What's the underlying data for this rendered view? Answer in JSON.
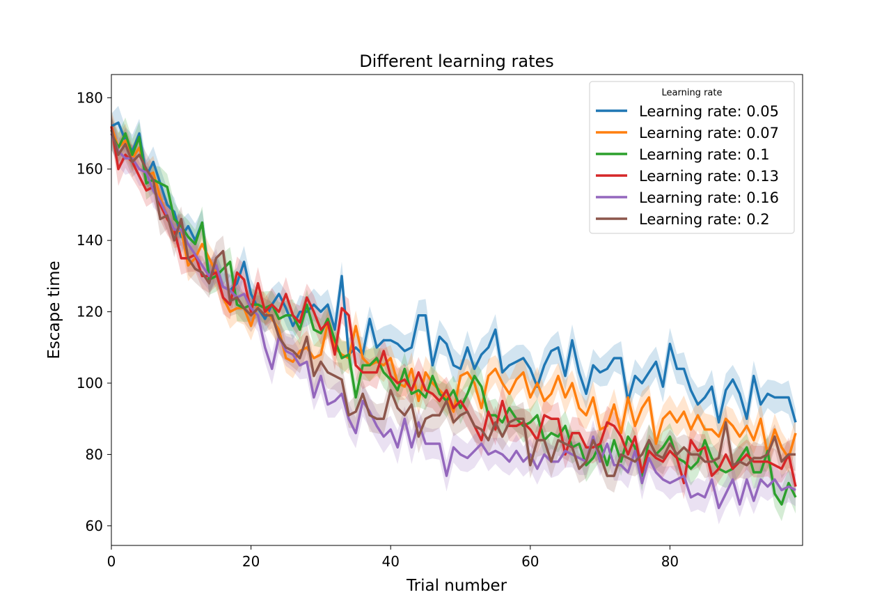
{
  "chart_data": {
    "type": "line",
    "title": "Different learning rates",
    "xlabel": "Trial number",
    "ylabel": "Escape time",
    "xlim": [
      0,
      99
    ],
    "ylim": [
      54.5,
      186.5
    ],
    "xticks": [
      0,
      20,
      40,
      60,
      80
    ],
    "yticks": [
      60,
      80,
      100,
      120,
      140,
      160,
      180
    ],
    "grid": false,
    "legend": {
      "title": "Learning rate",
      "placement": "upper right"
    },
    "band_halfwidth": 3.5,
    "series": [
      {
        "name": "Learning rate: 0.05",
        "color": "#1f77b4",
        "values": [
          172,
          173,
          168,
          165,
          170,
          158,
          162,
          156,
          150,
          148,
          141,
          144,
          140,
          145,
          130,
          132,
          127,
          126,
          128,
          134,
          125,
          121,
          118,
          122,
          125,
          121,
          116,
          120,
          120,
          122,
          120,
          122,
          115,
          130,
          108,
          110,
          108,
          118,
          110,
          112,
          112,
          111,
          109,
          110,
          119,
          119,
          105,
          113,
          111,
          105,
          104,
          110,
          104,
          108,
          110,
          115,
          103,
          105,
          106,
          107,
          104,
          99,
          105,
          109,
          110,
          102,
          112,
          103,
          97,
          105,
          103,
          104,
          107,
          107,
          95,
          102,
          100,
          103,
          106,
          99,
          111,
          104,
          104,
          98,
          94,
          96,
          99,
          89,
          98,
          101,
          97,
          90,
          102,
          94,
          97,
          96,
          96,
          96,
          89
        ]
      },
      {
        "name": "Learning rate: 0.07",
        "color": "#ff7f0e",
        "values": [
          172,
          166,
          168,
          163,
          166,
          158,
          159,
          152,
          147,
          142,
          143,
          133,
          135,
          139,
          135,
          131,
          124,
          120,
          121,
          121,
          116,
          122,
          121,
          118,
          115,
          107,
          106,
          109,
          110,
          107,
          108,
          117,
          110,
          108,
          107,
          116,
          107,
          105,
          106,
          105,
          107,
          100,
          99,
          104,
          95,
          103,
          100,
          98,
          96,
          92,
          102,
          103,
          100,
          93,
          102,
          104,
          100,
          97,
          101,
          103,
          96,
          100,
          95,
          97,
          102,
          96,
          100,
          93,
          91,
          96,
          87,
          88,
          94,
          86,
          96,
          88,
          93,
          96,
          83,
          90,
          92,
          89,
          92,
          87,
          91,
          87,
          87,
          85,
          90,
          88,
          85,
          88,
          84,
          90,
          80,
          87,
          82,
          79,
          86
        ]
      },
      {
        "name": "Learning rate: 0.1",
        "color": "#2ca02c",
        "values": [
          170,
          166,
          170,
          164,
          169,
          156,
          157,
          156,
          155,
          146,
          144,
          141,
          139,
          145,
          129,
          130,
          132,
          134,
          122,
          121,
          122,
          122,
          121,
          122,
          118,
          119,
          119,
          115,
          122,
          115,
          114,
          118,
          112,
          107,
          108,
          96,
          105,
          105,
          107,
          103,
          101,
          98,
          104,
          97,
          98,
          96,
          102,
          97,
          95,
          98,
          93,
          97,
          102,
          99,
          91,
          91,
          89,
          93,
          90,
          88,
          89,
          91,
          84,
          86,
          85,
          88,
          82,
          83,
          77,
          79,
          83,
          77,
          84,
          78,
          85,
          82,
          74,
          84,
          80,
          82,
          85,
          79,
          78,
          76,
          78,
          84,
          79,
          76,
          75,
          76,
          79,
          82,
          75,
          75,
          81,
          69,
          66,
          72,
          68
        ]
      },
      {
        "name": "Learning rate: 0.13",
        "color": "#d62728",
        "values": [
          172,
          160,
          164,
          162,
          158,
          154,
          155,
          150,
          146,
          143,
          135,
          135,
          136,
          130,
          130,
          131,
          124,
          122,
          131,
          129,
          120,
          128,
          120,
          122,
          120,
          125,
          119,
          117,
          124,
          120,
          115,
          117,
          108,
          121,
          119,
          105,
          103,
          103,
          103,
          109,
          102,
          100,
          101,
          98,
          103,
          98,
          97,
          95,
          98,
          93,
          95,
          92,
          88,
          84,
          92,
          87,
          95,
          88,
          88,
          89,
          87,
          84,
          91,
          90,
          90,
          80,
          86,
          86,
          82,
          82,
          83,
          89,
          88,
          85,
          80,
          85,
          75,
          81,
          79,
          78,
          81,
          79,
          72,
          84,
          81,
          82,
          74,
          76,
          80,
          76,
          78,
          80,
          78,
          78,
          78,
          77,
          76,
          80,
          71
        ]
      },
      {
        "name": "Learning rate: 0.16",
        "color": "#9467bd",
        "values": [
          170,
          165,
          163,
          163,
          160,
          159,
          154,
          151,
          147,
          143,
          143,
          139,
          136,
          133,
          130,
          133,
          127,
          126,
          124,
          125,
          121,
          119,
          110,
          104,
          113,
          109,
          108,
          105,
          106,
          96,
          102,
          94,
          95,
          97,
          90,
          86,
          95,
          92,
          88,
          85,
          87,
          82,
          90,
          82,
          89,
          83,
          83,
          83,
          74,
          82,
          80,
          79,
          81,
          83,
          80,
          81,
          80,
          78,
          81,
          78,
          80,
          76,
          80,
          78,
          78,
          81,
          80,
          79,
          78,
          85,
          78,
          83,
          77,
          77,
          75,
          81,
          72,
          79,
          75,
          73,
          72,
          73,
          74,
          68,
          69,
          68,
          73,
          65,
          69,
          73,
          66,
          73,
          67,
          73,
          71,
          73,
          70,
          71,
          70
        ]
      },
      {
        "name": "Learning rate: 0.2",
        "color": "#8c564b",
        "values": [
          171,
          164,
          167,
          162,
          164,
          160,
          157,
          146,
          147,
          140,
          146,
          135,
          132,
          131,
          128,
          135,
          137,
          123,
          124,
          121,
          119,
          121,
          119,
          119,
          113,
          110,
          109,
          107,
          113,
          102,
          106,
          103,
          102,
          101,
          91,
          92,
          97,
          91,
          90,
          90,
          98,
          93,
          91,
          94,
          85,
          90,
          91,
          91,
          95,
          89,
          91,
          92,
          88,
          87,
          84,
          89,
          85,
          89,
          90,
          90,
          77,
          84,
          84,
          78,
          84,
          83,
          82,
          76,
          78,
          84,
          80,
          74,
          74,
          80,
          79,
          78,
          80,
          84,
          80,
          79,
          83,
          80,
          82,
          80,
          80,
          78,
          78,
          79,
          89,
          77,
          78,
          77,
          79,
          79,
          80,
          85,
          78,
          80,
          80
        ]
      }
    ]
  }
}
